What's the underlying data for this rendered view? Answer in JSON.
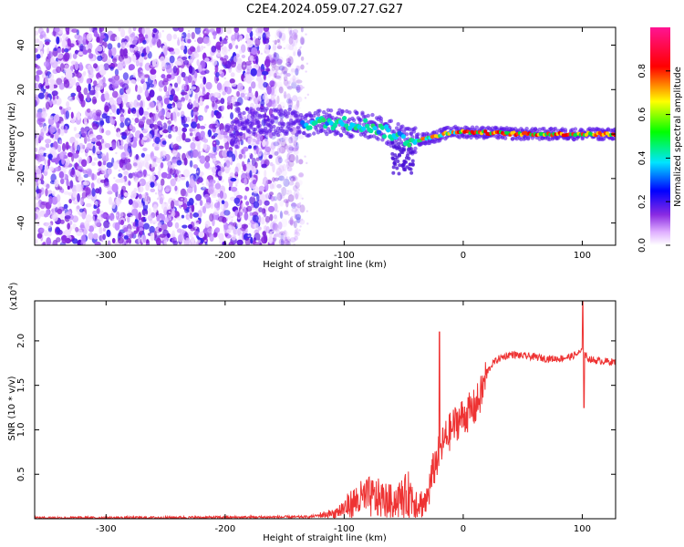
{
  "title": "C2E4.2024.059.07.27.G27",
  "chart_data": [
    {
      "type": "heatmap",
      "xlabel": "Height of straight line (km)",
      "ylabel": "Frequency (Hz)",
      "xlim": [
        -360,
        128
      ],
      "ylim": [
        -50,
        48
      ],
      "xticks": [
        -300,
        -200,
        -100,
        0,
        100
      ],
      "yticks": [
        -40,
        -20,
        0,
        20,
        40
      ],
      "colorbar": {
        "label": "Normalized spectral amplitude",
        "range": [
          0,
          1
        ],
        "ticks": [
          0.0,
          0.2,
          0.4,
          0.6,
          0.8
        ]
      },
      "ridge": [
        {
          "x": -190,
          "y": 6
        },
        {
          "x": -140,
          "y": 5
        },
        {
          "x": -120,
          "y": 5
        },
        {
          "x": -100,
          "y": 5
        },
        {
          "x": -80,
          "y": 4
        },
        {
          "x": -60,
          "y": 0
        },
        {
          "x": -45,
          "y": -3
        },
        {
          "x": -30,
          "y": -2
        },
        {
          "x": -10,
          "y": 1
        },
        {
          "x": 0,
          "y": 1
        },
        {
          "x": 50,
          "y": 0
        },
        {
          "x": 100,
          "y": 0
        },
        {
          "x": 128,
          "y": 0
        }
      ]
    },
    {
      "type": "line",
      "xlabel": "Height of straight line (km)",
      "ylabel": "SNR (10 * v/v)",
      "yscale_note": "(x10",
      "yscale_exp": "4",
      "yscale_close": ")",
      "xlim": [
        -360,
        128
      ],
      "ylim": [
        0,
        24500
      ],
      "xticks": [
        -300,
        -200,
        -100,
        0,
        100
      ],
      "yticks": [
        5000,
        10000,
        15000,
        20000
      ],
      "ytick_labels": [
        "0.5",
        "1.0",
        "1.5",
        "2.0"
      ],
      "series": [
        {
          "color": "#ee3333",
          "x": [
            -360,
            -300,
            -200,
            -130,
            -110,
            -100,
            -90,
            -80,
            -70,
            -60,
            -50,
            -45,
            -40,
            -35,
            -30,
            -25,
            -20,
            -15,
            -10,
            -5,
            0,
            5,
            10,
            15,
            20,
            25,
            30,
            40,
            50,
            60,
            70,
            80,
            90,
            95,
            100,
            102,
            105,
            110,
            120,
            128
          ],
          "y": [
            100,
            100,
            150,
            200,
            600,
            1500,
            2500,
            3000,
            2800,
            2400,
            3000,
            3500,
            2500,
            2200,
            2500,
            5500,
            7500,
            9000,
            10000,
            11000,
            11500,
            12000,
            12500,
            14000,
            16500,
            17500,
            18000,
            18500,
            18300,
            18200,
            18000,
            18000,
            18200,
            18500,
            18800,
            18500,
            18000,
            17800,
            17700,
            17600
          ]
        }
      ]
    }
  ]
}
